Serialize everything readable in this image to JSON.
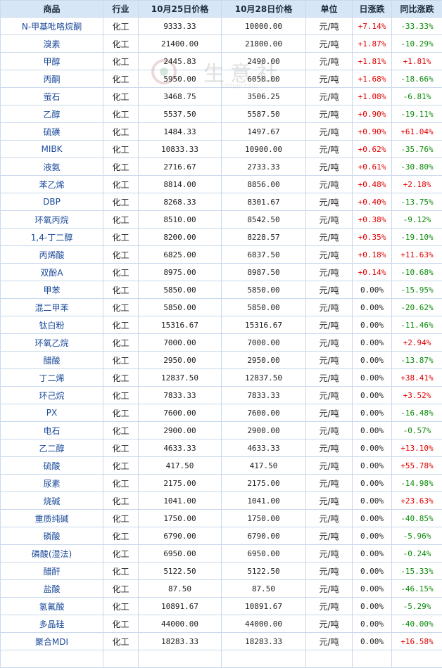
{
  "headers": [
    "商品",
    "行业",
    "10月25日价格",
    "10月28日价格",
    "单位",
    "日涨跌",
    "同比涨跌"
  ],
  "colors": {
    "up": "#e00000",
    "down": "#0a8a0a",
    "header_bg": "#d7e6f7",
    "border": "#c9d9ec",
    "link": "#1a4a9a"
  },
  "rows": [
    [
      "N-甲基吡咯烷酮",
      "化工",
      "9333.33",
      "10000.00",
      "元/吨",
      "+7.14%",
      "-33.33%"
    ],
    [
      "溴素",
      "化工",
      "21400.00",
      "21800.00",
      "元/吨",
      "+1.87%",
      "-10.29%"
    ],
    [
      "甲醇",
      "化工",
      "2445.83",
      "2490.00",
      "元/吨",
      "+1.81%",
      "+1.81%"
    ],
    [
      "丙酮",
      "化工",
      "5950.00",
      "6050.00",
      "元/吨",
      "+1.68%",
      "-18.66%"
    ],
    [
      "萤石",
      "化工",
      "3468.75",
      "3506.25",
      "元/吨",
      "+1.08%",
      "-6.81%"
    ],
    [
      "乙醇",
      "化工",
      "5537.50",
      "5587.50",
      "元/吨",
      "+0.90%",
      "-19.11%"
    ],
    [
      "硫磺",
      "化工",
      "1484.33",
      "1497.67",
      "元/吨",
      "+0.90%",
      "+61.04%"
    ],
    [
      "MIBK",
      "化工",
      "10833.33",
      "10900.00",
      "元/吨",
      "+0.62%",
      "-35.76%"
    ],
    [
      "液氨",
      "化工",
      "2716.67",
      "2733.33",
      "元/吨",
      "+0.61%",
      "-30.80%"
    ],
    [
      "苯乙烯",
      "化工",
      "8814.00",
      "8856.00",
      "元/吨",
      "+0.48%",
      "+2.18%"
    ],
    [
      "DBP",
      "化工",
      "8268.33",
      "8301.67",
      "元/吨",
      "+0.40%",
      "-13.75%"
    ],
    [
      "环氧丙烷",
      "化工",
      "8510.00",
      "8542.50",
      "元/吨",
      "+0.38%",
      "-9.12%"
    ],
    [
      "1,4-丁二醇",
      "化工",
      "8200.00",
      "8228.57",
      "元/吨",
      "+0.35%",
      "-19.10%"
    ],
    [
      "丙烯酸",
      "化工",
      "6825.00",
      "6837.50",
      "元/吨",
      "+0.18%",
      "+11.63%"
    ],
    [
      "双酚A",
      "化工",
      "8975.00",
      "8987.50",
      "元/吨",
      "+0.14%",
      "-10.68%"
    ],
    [
      "甲苯",
      "化工",
      "5850.00",
      "5850.00",
      "元/吨",
      "0.00%",
      "-15.95%"
    ],
    [
      "混二甲苯",
      "化工",
      "5850.00",
      "5850.00",
      "元/吨",
      "0.00%",
      "-20.62%"
    ],
    [
      "钛白粉",
      "化工",
      "15316.67",
      "15316.67",
      "元/吨",
      "0.00%",
      "-11.46%"
    ],
    [
      "环氧乙烷",
      "化工",
      "7000.00",
      "7000.00",
      "元/吨",
      "0.00%",
      "+2.94%"
    ],
    [
      "醋酸",
      "化工",
      "2950.00",
      "2950.00",
      "元/吨",
      "0.00%",
      "-13.87%"
    ],
    [
      "丁二烯",
      "化工",
      "12837.50",
      "12837.50",
      "元/吨",
      "0.00%",
      "+38.41%"
    ],
    [
      "环己烷",
      "化工",
      "7833.33",
      "7833.33",
      "元/吨",
      "0.00%",
      "+3.52%"
    ],
    [
      "PX",
      "化工",
      "7600.00",
      "7600.00",
      "元/吨",
      "0.00%",
      "-16.48%"
    ],
    [
      "电石",
      "化工",
      "2900.00",
      "2900.00",
      "元/吨",
      "0.00%",
      "-0.57%"
    ],
    [
      "乙二醇",
      "化工",
      "4633.33",
      "4633.33",
      "元/吨",
      "0.00%",
      "+13.10%"
    ],
    [
      "硫酸",
      "化工",
      "417.50",
      "417.50",
      "元/吨",
      "0.00%",
      "+55.78%"
    ],
    [
      "尿素",
      "化工",
      "2175.00",
      "2175.00",
      "元/吨",
      "0.00%",
      "-14.98%"
    ],
    [
      "烧碱",
      "化工",
      "1041.00",
      "1041.00",
      "元/吨",
      "0.00%",
      "+23.63%"
    ],
    [
      "重质纯碱",
      "化工",
      "1750.00",
      "1750.00",
      "元/吨",
      "0.00%",
      "-40.85%"
    ],
    [
      "磷酸",
      "化工",
      "6790.00",
      "6790.00",
      "元/吨",
      "0.00%",
      "-5.96%"
    ],
    [
      "磷酸(湿法)",
      "化工",
      "6950.00",
      "6950.00",
      "元/吨",
      "0.00%",
      "-0.24%"
    ],
    [
      "醋酐",
      "化工",
      "5122.50",
      "5122.50",
      "元/吨",
      "0.00%",
      "-15.33%"
    ],
    [
      "盐酸",
      "化工",
      "87.50",
      "87.50",
      "元/吨",
      "0.00%",
      "-46.15%"
    ],
    [
      "氢氟酸",
      "化工",
      "10891.67",
      "10891.67",
      "元/吨",
      "0.00%",
      "-5.29%"
    ],
    [
      "多晶硅",
      "化工",
      "44000.00",
      "44000.00",
      "元/吨",
      "0.00%",
      "-40.00%"
    ],
    [
      "聚合MDI",
      "化工",
      "18283.33",
      "18283.33",
      "元/吨",
      "0.00%",
      "+16.58%"
    ],
    [
      "",
      "",
      "",
      "",
      "",
      "",
      ""
    ]
  ]
}
